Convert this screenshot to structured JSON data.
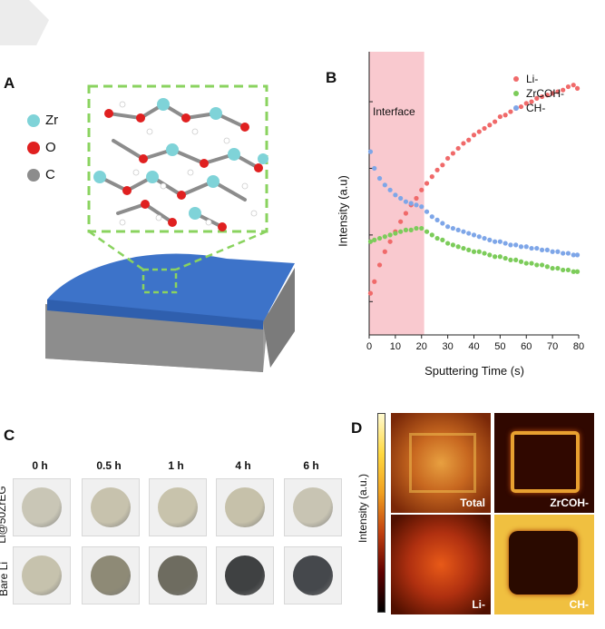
{
  "top_tab": "",
  "panel_a": {
    "label": "A",
    "legend": [
      {
        "label": "Zr",
        "color": "#7fd3d8"
      },
      {
        "label": "O",
        "color": "#e02020"
      },
      {
        "label": "C",
        "color": "#8c8c8c"
      }
    ]
  },
  "panel_b": {
    "label": "B",
    "interface_label": "Interface"
  },
  "chart_data": {
    "type": "scatter",
    "xlabel": "Sputtering Time (s)",
    "ylabel": "Intensity (a.u)",
    "xlim": [
      0,
      80
    ],
    "xticks": [
      0,
      10,
      20,
      30,
      40,
      50,
      60,
      70,
      80
    ],
    "interface_region": [
      0,
      21
    ],
    "legend_position": "top-right",
    "series": [
      {
        "name": "Li-",
        "color": "#f06a6a",
        "x": [
          0.5,
          2,
          4,
          6,
          8,
          10,
          12,
          14,
          16,
          18,
          20,
          22,
          24,
          26,
          28,
          30,
          32,
          34,
          36,
          38,
          40,
          42,
          44,
          46,
          48,
          50,
          52,
          54,
          56,
          58,
          60,
          62,
          64,
          66,
          68,
          70,
          72,
          74,
          76,
          78,
          79.5
        ],
        "y": [
          0.55,
          0.62,
          0.72,
          0.8,
          0.86,
          0.92,
          0.98,
          1.03,
          1.08,
          1.12,
          1.17,
          1.21,
          1.25,
          1.29,
          1.32,
          1.36,
          1.39,
          1.42,
          1.45,
          1.47,
          1.5,
          1.52,
          1.54,
          1.56,
          1.58,
          1.61,
          1.62,
          1.64,
          1.66,
          1.67,
          1.69,
          1.7,
          1.72,
          1.73,
          1.74,
          1.75,
          1.76,
          1.77,
          1.79,
          1.8,
          1.78
        ]
      },
      {
        "name": "ZrCOH-",
        "color": "#7ccc5a",
        "x": [
          0.5,
          2,
          4,
          6,
          8,
          10,
          12,
          14,
          16,
          18,
          20,
          22,
          24,
          26,
          28,
          30,
          32,
          34,
          36,
          38,
          40,
          42,
          44,
          46,
          48,
          50,
          52,
          54,
          56,
          58,
          60,
          62,
          64,
          66,
          68,
          70,
          72,
          74,
          76,
          78,
          79.5
        ],
        "y": [
          0.86,
          0.87,
          0.88,
          0.89,
          0.9,
          0.91,
          0.92,
          0.93,
          0.93,
          0.94,
          0.94,
          0.92,
          0.9,
          0.88,
          0.87,
          0.85,
          0.84,
          0.83,
          0.82,
          0.81,
          0.8,
          0.8,
          0.79,
          0.78,
          0.77,
          0.77,
          0.76,
          0.75,
          0.75,
          0.74,
          0.73,
          0.73,
          0.72,
          0.72,
          0.71,
          0.7,
          0.7,
          0.69,
          0.69,
          0.68,
          0.68
        ]
      },
      {
        "name": "CH-",
        "color": "#7ea6e8",
        "x": [
          0.5,
          2,
          4,
          6,
          8,
          10,
          12,
          14,
          16,
          18,
          20,
          22,
          24,
          26,
          28,
          30,
          32,
          34,
          36,
          38,
          40,
          42,
          44,
          46,
          48,
          50,
          52,
          54,
          56,
          58,
          60,
          62,
          64,
          66,
          68,
          70,
          72,
          74,
          76,
          78,
          79.5
        ],
        "y": [
          1.4,
          1.3,
          1.24,
          1.2,
          1.17,
          1.14,
          1.12,
          1.1,
          1.09,
          1.08,
          1.07,
          1.04,
          1.01,
          0.99,
          0.97,
          0.95,
          0.94,
          0.93,
          0.92,
          0.91,
          0.9,
          0.89,
          0.88,
          0.87,
          0.86,
          0.86,
          0.85,
          0.84,
          0.84,
          0.83,
          0.83,
          0.82,
          0.82,
          0.81,
          0.81,
          0.8,
          0.8,
          0.79,
          0.79,
          0.78,
          0.78
        ]
      }
    ]
  },
  "panel_c": {
    "label": "C",
    "times": [
      "0 h",
      "0.5 h",
      "1 h",
      "4 h",
      "6 h"
    ],
    "row_labels": [
      "Li@50ZrEG",
      "Bare Li"
    ],
    "row1_coin_colors": [
      "#c9c6b6",
      "#c7c2ad",
      "#c8c3ac",
      "#c6c1aa",
      "#c8c4b3"
    ],
    "row2_coin_colors": [
      "#c6c2ad",
      "#8e8a76",
      "#6e6c60",
      "#3f4142",
      "#45484c"
    ]
  },
  "panel_d": {
    "label": "D",
    "colorbar_label": "Intensity (a.u.)",
    "maps": [
      "Total",
      "ZrCOH-",
      "Li-",
      "CH-"
    ]
  }
}
